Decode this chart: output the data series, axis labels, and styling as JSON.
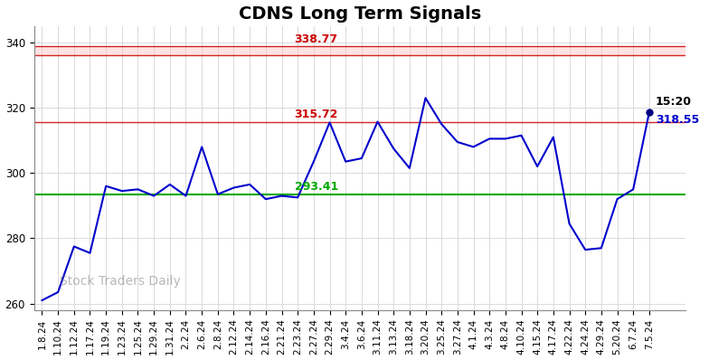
{
  "title": "CDNS Long Term Signals",
  "watermark": "Stock Traders Daily",
  "red_line_upper": 338.77,
  "red_line_lower_band": 336.0,
  "red_line_mid": 315.72,
  "green_line": 293.41,
  "last_price": 318.55,
  "last_time": "15:20",
  "ylim": [
    258,
    345
  ],
  "yticks": [
    260,
    280,
    300,
    320,
    340
  ],
  "x_labels": [
    "1.8.24",
    "1.10.24",
    "1.12.24",
    "1.17.24",
    "1.19.24",
    "1.23.24",
    "1.25.24",
    "1.29.24",
    "1.31.24",
    "2.2.24",
    "2.6.24",
    "2.8.24",
    "2.12.24",
    "2.14.24",
    "2.16.24",
    "2.21.24",
    "2.23.24",
    "2.27.24",
    "2.29.24",
    "3.4.24",
    "3.6.24",
    "3.11.24",
    "3.13.24",
    "3.18.24",
    "3.20.24",
    "3.25.24",
    "3.27.24",
    "4.1.24",
    "4.3.24",
    "4.8.24",
    "4.10.24",
    "4.15.24",
    "4.17.24",
    "4.22.24",
    "4.24.24",
    "4.29.24",
    "5.20.24",
    "6.7.24",
    "7.5.24"
  ],
  "prices": [
    261.0,
    263.5,
    277.5,
    275.5,
    296.0,
    294.5,
    295.0,
    293.0,
    296.5,
    293.0,
    308.0,
    293.5,
    295.5,
    296.5,
    292.0,
    293.0,
    292.5,
    303.5,
    315.5,
    303.5,
    304.5,
    315.72,
    307.5,
    301.5,
    323.0,
    315.0,
    309.5,
    308.0,
    310.5,
    310.5,
    311.5,
    302.0,
    311.0,
    284.5,
    276.5,
    277.0,
    292.0,
    295.0,
    318.55
  ],
  "line_color": "#0000cc",
  "red_color": "#cc0000",
  "green_color": "#00aa00",
  "pink_fill_color": "#ffb0b0",
  "title_fontsize": 14,
  "tick_fontsize": 7.5,
  "label_fontsize": 9,
  "watermark_fontsize": 10
}
